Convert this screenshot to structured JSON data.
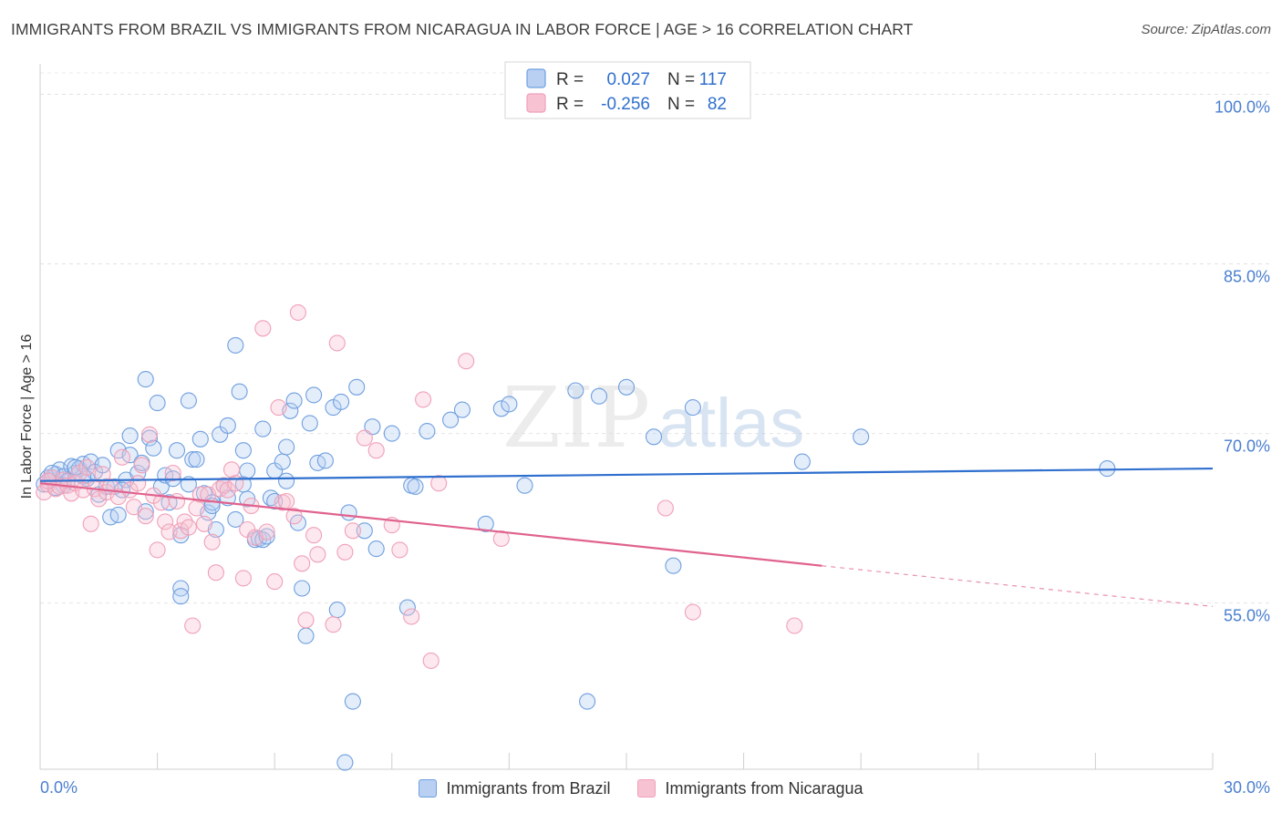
{
  "header": {
    "title": "IMMIGRANTS FROM BRAZIL VS IMMIGRANTS FROM NICARAGUA IN LABOR FORCE | AGE > 16 CORRELATION CHART",
    "source": "Source: ZipAtlas.com"
  },
  "watermark": {
    "zip": "ZIP",
    "atlas": "atlas"
  },
  "chart_data": {
    "type": "scatter",
    "title": "IMMIGRANTS FROM BRAZIL VS IMMIGRANTS FROM NICARAGUA IN LABOR FORCE | AGE > 16 CORRELATION CHART",
    "xlabel": "",
    "ylabel": "In Labor Force | Age > 16",
    "xlim": [
      0.0,
      30.0
    ],
    "ylim": [
      40.3,
      102.7
    ],
    "x_tick_labels": [
      "0.0%",
      "30.0%"
    ],
    "y_ticks": [
      55.0,
      70.0,
      85.0,
      100.0
    ],
    "y_tick_labels": [
      "55.0%",
      "70.0%",
      "85.0%",
      "100.0%"
    ],
    "grid": true,
    "legend_position": "top-center",
    "stats": [
      {
        "r_label": "R =",
        "r_value": "0.027",
        "n_label": "N =",
        "n_value": "117"
      },
      {
        "r_label": "R =",
        "r_value": "-0.256",
        "n_label": "N =",
        "n_value": "82"
      }
    ],
    "series": [
      {
        "name": "Immigrants from Brazil",
        "color": "#6f9fe0",
        "line_color": "#2f6fce",
        "trend": {
          "x": [
            0.0,
            30.0
          ],
          "y": [
            65.8,
            66.9
          ]
        },
        "points": [
          [
            0.1,
            65.5
          ],
          [
            0.2,
            66.1
          ],
          [
            0.3,
            65.9
          ],
          [
            0.4,
            66.4
          ],
          [
            0.5,
            66.8
          ],
          [
            0.6,
            66.2
          ],
          [
            0.7,
            65.8
          ],
          [
            0.8,
            67.1
          ],
          [
            0.9,
            66.5
          ],
          [
            1.0,
            66.9
          ],
          [
            1.1,
            67.3
          ],
          [
            1.2,
            66.0
          ],
          [
            1.3,
            67.5
          ],
          [
            1.4,
            66.6
          ],
          [
            1.5,
            64.6
          ],
          [
            1.6,
            67.2
          ],
          [
            1.7,
            65.3
          ],
          [
            1.8,
            62.6
          ],
          [
            1.9,
            65.3
          ],
          [
            2.0,
            62.8
          ],
          [
            2.0,
            68.5
          ],
          [
            2.2,
            65.9
          ],
          [
            2.3,
            68.1
          ],
          [
            2.3,
            69.8
          ],
          [
            2.5,
            66.5
          ],
          [
            2.6,
            67.4
          ],
          [
            2.7,
            63.1
          ],
          [
            2.8,
            69.6
          ],
          [
            2.7,
            74.8
          ],
          [
            2.9,
            68.7
          ],
          [
            3.0,
            72.7
          ],
          [
            3.1,
            65.3
          ],
          [
            3.2,
            66.3
          ],
          [
            3.3,
            63.9
          ],
          [
            3.4,
            66.0
          ],
          [
            3.5,
            68.5
          ],
          [
            3.6,
            61.0
          ],
          [
            3.6,
            56.3
          ],
          [
            3.6,
            55.6
          ],
          [
            3.8,
            72.9
          ],
          [
            3.8,
            65.5
          ],
          [
            3.9,
            67.7
          ],
          [
            4.0,
            67.7
          ],
          [
            4.1,
            69.5
          ],
          [
            4.2,
            64.7
          ],
          [
            4.3,
            63.0
          ],
          [
            4.4,
            63.9
          ],
          [
            4.5,
            61.5
          ],
          [
            4.6,
            69.9
          ],
          [
            4.7,
            65.4
          ],
          [
            4.8,
            64.3
          ],
          [
            4.8,
            70.7
          ],
          [
            5.0,
            62.4
          ],
          [
            5.0,
            77.8
          ],
          [
            5.1,
            73.7
          ],
          [
            5.2,
            68.5
          ],
          [
            5.2,
            65.5
          ],
          [
            5.3,
            64.2
          ],
          [
            5.3,
            66.7
          ],
          [
            5.5,
            60.6
          ],
          [
            5.6,
            60.7
          ],
          [
            5.7,
            60.6
          ],
          [
            5.7,
            70.4
          ],
          [
            5.8,
            60.9
          ],
          [
            5.9,
            64.3
          ],
          [
            6.0,
            64.0
          ],
          [
            6.0,
            66.7
          ],
          [
            6.2,
            67.5
          ],
          [
            6.3,
            65.8
          ],
          [
            6.3,
            68.8
          ],
          [
            6.4,
            72.0
          ],
          [
            6.5,
            72.9
          ],
          [
            6.6,
            62.1
          ],
          [
            6.7,
            56.3
          ],
          [
            6.8,
            52.1
          ],
          [
            6.9,
            70.9
          ],
          [
            7.0,
            73.4
          ],
          [
            7.1,
            67.4
          ],
          [
            7.3,
            67.6
          ],
          [
            7.5,
            72.3
          ],
          [
            7.6,
            54.4
          ],
          [
            7.7,
            72.8
          ],
          [
            7.9,
            63.0
          ],
          [
            8.0,
            46.3
          ],
          [
            8.1,
            74.1
          ],
          [
            8.3,
            61.4
          ],
          [
            8.5,
            70.6
          ],
          [
            8.6,
            59.8
          ],
          [
            9.0,
            70.0
          ],
          [
            9.4,
            54.6
          ],
          [
            9.5,
            65.4
          ],
          [
            9.6,
            65.3
          ],
          [
            9.9,
            70.2
          ],
          [
            10.5,
            71.2
          ],
          [
            10.8,
            72.1
          ],
          [
            11.4,
            62.0
          ],
          [
            11.8,
            72.2
          ],
          [
            12.0,
            72.6
          ],
          [
            12.4,
            65.4
          ],
          [
            13.7,
            73.8
          ],
          [
            14.0,
            46.3
          ],
          [
            14.3,
            73.3
          ],
          [
            15.0,
            74.1
          ],
          [
            15.7,
            69.7
          ],
          [
            16.2,
            58.3
          ],
          [
            16.7,
            72.3
          ],
          [
            19.5,
            67.5
          ],
          [
            21.0,
            69.7
          ],
          [
            27.3,
            66.9
          ],
          [
            7.8,
            40.9
          ],
          [
            0.3,
            66.5
          ],
          [
            0.6,
            65.4
          ],
          [
            1.1,
            66.2
          ],
          [
            2.1,
            65.0
          ],
          [
            4.4,
            63.6
          ],
          [
            0.4,
            65.2
          ],
          [
            0.9,
            67.0
          ]
        ]
      },
      {
        "name": "Immigrants from Nicaragua",
        "color": "#f0a0b8",
        "line_color": "#e0628e",
        "trend": {
          "x": [
            0.0,
            20.0
          ],
          "y": [
            65.6,
            58.3
          ]
        },
        "trend_extension": {
          "x": [
            20.0,
            30.0
          ],
          "y": [
            58.3,
            54.7
          ]
        },
        "points": [
          [
            0.1,
            64.8
          ],
          [
            0.2,
            65.5
          ],
          [
            0.3,
            66.1
          ],
          [
            0.4,
            65.1
          ],
          [
            0.5,
            65.3
          ],
          [
            0.6,
            65.9
          ],
          [
            0.7,
            65.4
          ],
          [
            0.8,
            64.7
          ],
          [
            0.9,
            65.6
          ],
          [
            1.0,
            66.5
          ],
          [
            1.1,
            65.0
          ],
          [
            1.2,
            67.0
          ],
          [
            1.3,
            62.0
          ],
          [
            1.4,
            65.1
          ],
          [
            1.5,
            64.2
          ],
          [
            1.6,
            66.4
          ],
          [
            1.7,
            64.8
          ],
          [
            1.8,
            65.3
          ],
          [
            2.0,
            64.4
          ],
          [
            2.1,
            67.9
          ],
          [
            2.3,
            65.0
          ],
          [
            2.4,
            63.5
          ],
          [
            2.5,
            65.6
          ],
          [
            2.6,
            67.2
          ],
          [
            2.7,
            62.7
          ],
          [
            2.8,
            69.9
          ],
          [
            2.9,
            64.5
          ],
          [
            3.0,
            59.7
          ],
          [
            3.1,
            63.9
          ],
          [
            3.2,
            62.2
          ],
          [
            3.3,
            61.3
          ],
          [
            3.4,
            66.5
          ],
          [
            3.5,
            64.0
          ],
          [
            3.6,
            61.4
          ],
          [
            3.7,
            62.2
          ],
          [
            3.8,
            61.7
          ],
          [
            3.9,
            53.0
          ],
          [
            4.0,
            63.4
          ],
          [
            4.1,
            64.6
          ],
          [
            4.2,
            62.0
          ],
          [
            4.3,
            64.6
          ],
          [
            4.4,
            60.4
          ],
          [
            4.5,
            57.7
          ],
          [
            4.6,
            65.1
          ],
          [
            4.7,
            65.4
          ],
          [
            4.8,
            65.0
          ],
          [
            4.9,
            66.8
          ],
          [
            5.0,
            65.6
          ],
          [
            5.2,
            57.2
          ],
          [
            5.3,
            61.5
          ],
          [
            5.4,
            63.6
          ],
          [
            5.5,
            60.8
          ],
          [
            5.7,
            79.3
          ],
          [
            5.8,
            61.3
          ],
          [
            6.0,
            56.9
          ],
          [
            6.1,
            72.3
          ],
          [
            6.2,
            63.9
          ],
          [
            6.3,
            64.0
          ],
          [
            6.5,
            62.7
          ],
          [
            6.6,
            80.7
          ],
          [
            6.7,
            58.5
          ],
          [
            6.8,
            53.5
          ],
          [
            7.0,
            61.0
          ],
          [
            7.1,
            59.3
          ],
          [
            7.5,
            53.1
          ],
          [
            7.6,
            78.0
          ],
          [
            7.8,
            59.5
          ],
          [
            8.0,
            61.4
          ],
          [
            8.3,
            69.6
          ],
          [
            8.6,
            68.5
          ],
          [
            9.0,
            61.9
          ],
          [
            9.2,
            59.7
          ],
          [
            9.5,
            53.8
          ],
          [
            9.8,
            73.0
          ],
          [
            10.0,
            49.9
          ],
          [
            10.2,
            65.6
          ],
          [
            10.9,
            76.4
          ],
          [
            11.8,
            60.7
          ],
          [
            16.0,
            63.4
          ],
          [
            16.7,
            54.2
          ],
          [
            19.3,
            53.0
          ],
          [
            0.2,
            65.8
          ]
        ]
      }
    ]
  }
}
